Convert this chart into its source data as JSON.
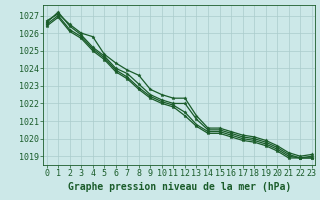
{
  "title": "Graphe pression niveau de la mer (hPa)",
  "background_color": "#cce8e8",
  "grid_color": "#aacccc",
  "line_color": "#1a5c2a",
  "xlim": [
    -0.3,
    23.3
  ],
  "ylim": [
    1018.5,
    1027.6
  ],
  "yticks": [
    1019,
    1020,
    1021,
    1022,
    1023,
    1024,
    1025,
    1026,
    1027
  ],
  "xticks": [
    0,
    1,
    2,
    3,
    4,
    5,
    6,
    7,
    8,
    9,
    10,
    11,
    12,
    13,
    14,
    15,
    16,
    17,
    18,
    19,
    20,
    21,
    22,
    23
  ],
  "series": [
    [
      1026.7,
      1027.1,
      1026.5,
      1026.0,
      1025.8,
      1024.8,
      1024.3,
      1023.9,
      1023.6,
      1022.8,
      1022.5,
      1022.3,
      1022.3,
      1021.3,
      1020.6,
      1020.6,
      1020.4,
      1020.2,
      1020.1,
      1019.9,
      1019.6,
      1019.2,
      1019.0,
      1019.1
    ],
    [
      1026.6,
      1027.2,
      1026.4,
      1025.9,
      1025.2,
      1024.7,
      1024.0,
      1023.7,
      1023.1,
      1022.5,
      1022.2,
      1022.0,
      1022.0,
      1021.1,
      1020.5,
      1020.5,
      1020.3,
      1020.1,
      1020.0,
      1019.8,
      1019.5,
      1019.1,
      1018.9,
      1019.0
    ],
    [
      1026.5,
      1027.0,
      1026.2,
      1025.8,
      1025.1,
      1024.6,
      1023.9,
      1023.5,
      1022.9,
      1022.4,
      1022.1,
      1021.9,
      1021.5,
      1020.8,
      1020.4,
      1020.4,
      1020.2,
      1020.0,
      1019.9,
      1019.7,
      1019.4,
      1019.0,
      1018.9,
      1018.9
    ],
    [
      1026.4,
      1026.9,
      1026.1,
      1025.7,
      1025.0,
      1024.5,
      1023.8,
      1023.4,
      1022.8,
      1022.3,
      1022.0,
      1021.8,
      1021.3,
      1020.7,
      1020.3,
      1020.3,
      1020.1,
      1019.9,
      1019.8,
      1019.6,
      1019.3,
      1018.9,
      1018.9,
      1018.9
    ]
  ],
  "tick_fontsize": 6,
  "label_fontsize": 7,
  "linewidth": 0.9,
  "markersize": 2.5
}
